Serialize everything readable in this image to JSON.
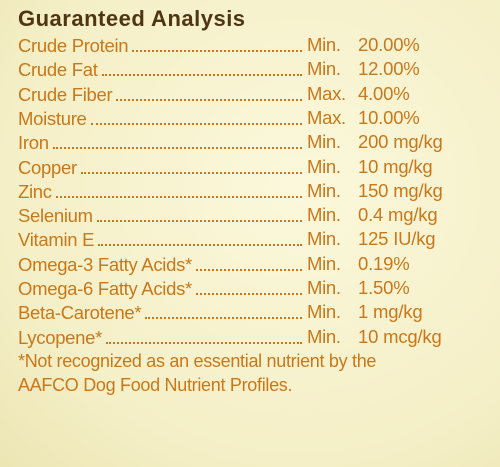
{
  "header": {
    "title": "Guaranteed Analysis"
  },
  "table": {
    "rows": [
      {
        "nutrient": "Crude Protein",
        "basis": "Min.",
        "amount": "20.00%"
      },
      {
        "nutrient": "Crude Fat",
        "basis": "Min.",
        "amount": "12.00%"
      },
      {
        "nutrient": "Crude Fiber",
        "basis": "Max.",
        "amount": "4.00%"
      },
      {
        "nutrient": "Moisture",
        "basis": "Max.",
        "amount": "10.00%"
      },
      {
        "nutrient": "Iron",
        "basis": "Min.",
        "amount": "200 mg/kg"
      },
      {
        "nutrient": "Copper",
        "basis": "Min.",
        "amount": "10 mg/kg"
      },
      {
        "nutrient": "Zinc",
        "basis": "Min.",
        "amount": "150 mg/kg"
      },
      {
        "nutrient": "Selenium",
        "basis": "Min.",
        "amount": "0.4 mg/kg"
      },
      {
        "nutrient": "Vitamin E",
        "basis": "Min.",
        "amount": "125 IU/kg"
      },
      {
        "nutrient": "Omega-3 Fatty Acids*",
        "basis": "Min.",
        "amount": "0.19%"
      },
      {
        "nutrient": "Omega-6 Fatty Acids*",
        "basis": "Min.",
        "amount": "1.50%"
      },
      {
        "nutrient": "Beta-Carotene*",
        "basis": "Min.",
        "amount": "1 mg/kg"
      },
      {
        "nutrient": "Lycopene*",
        "basis": "Min.",
        "amount": "10 mcg/kg"
      }
    ]
  },
  "footnote": {
    "lines": [
      "*Not recognized as an essential nutrient by the",
      "AAFCO Dog Food Nutrient Profiles."
    ]
  }
}
